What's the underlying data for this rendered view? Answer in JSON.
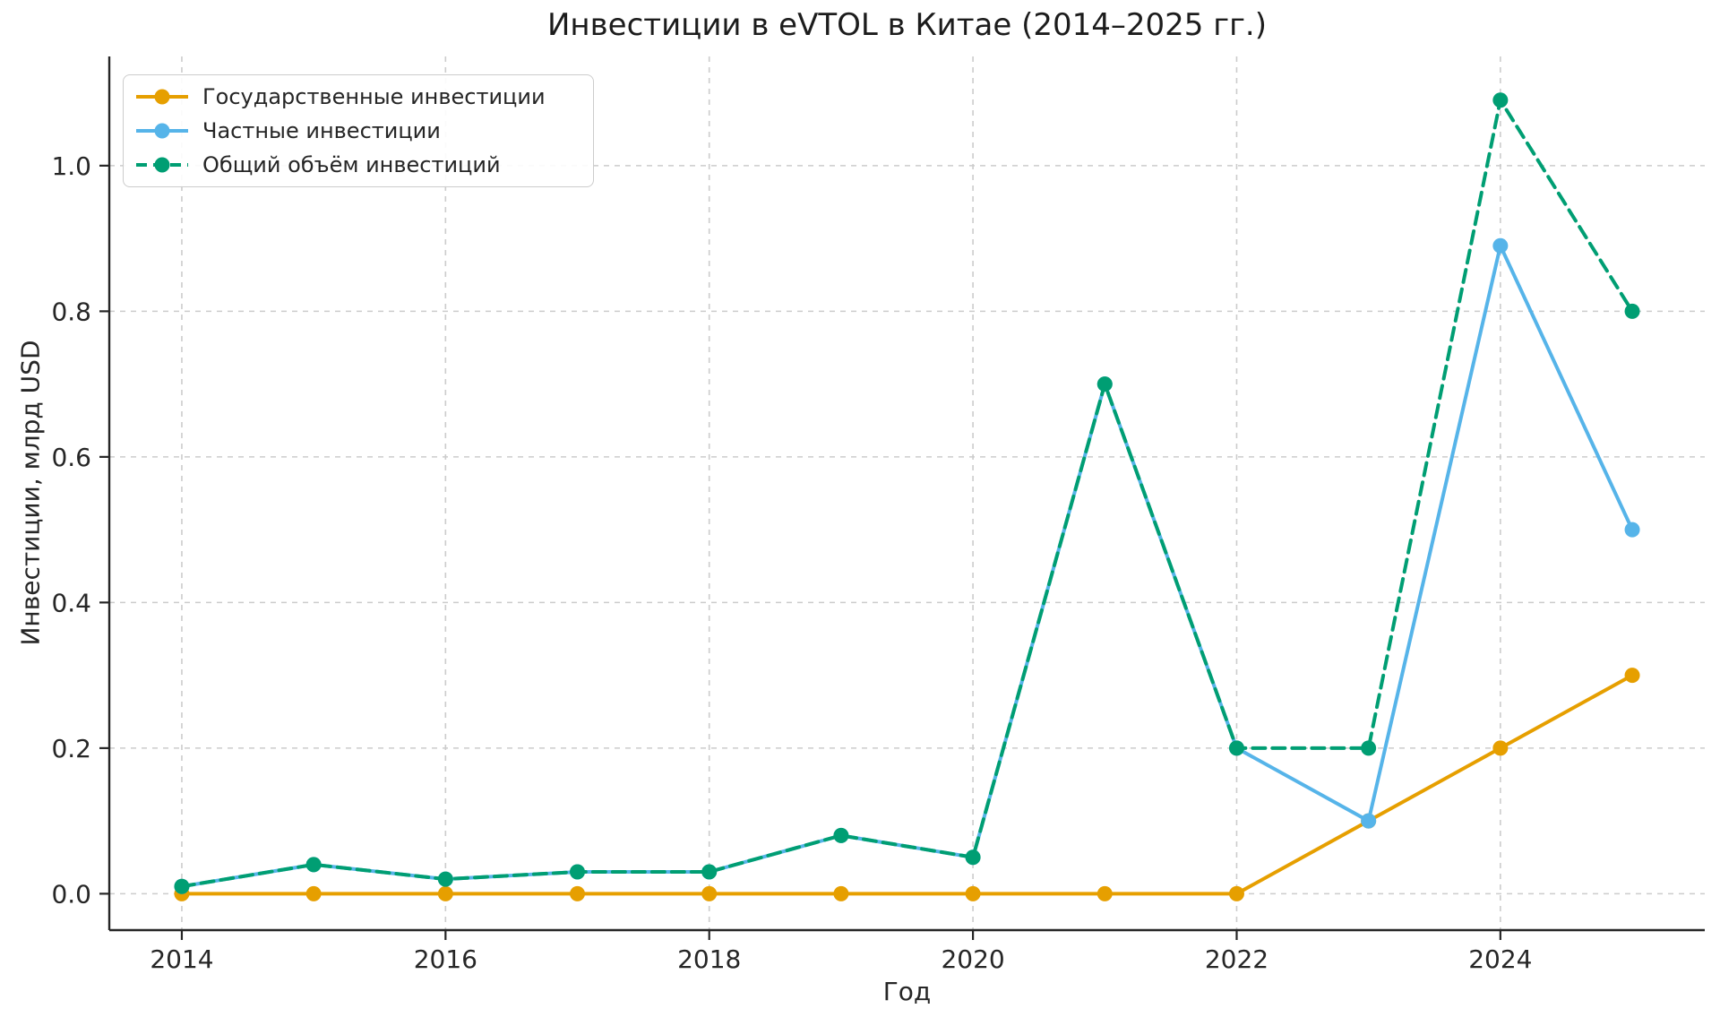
{
  "chart_data": {
    "type": "line",
    "title": "Инвестиции в eVTOL в Китае (2014–2025 гг.)",
    "xlabel": "Год",
    "ylabel": "Инвестиции, млрд USD",
    "x": [
      2014,
      2015,
      2016,
      2017,
      2018,
      2019,
      2020,
      2021,
      2022,
      2023,
      2024,
      2025
    ],
    "series": [
      {
        "id": "government",
        "name": "Государственные инвестиции",
        "color": "#E69F00",
        "style": "solid",
        "values": [
          0.0,
          0.0,
          0.0,
          0.0,
          0.0,
          0.0,
          0.0,
          0.0,
          0.0,
          0.1,
          0.2,
          0.3
        ]
      },
      {
        "id": "private",
        "name": "Частные инвестиции",
        "color": "#56B4E9",
        "style": "solid",
        "values": [
          0.01,
          0.04,
          0.02,
          0.03,
          0.03,
          0.08,
          0.05,
          0.7,
          0.2,
          0.1,
          0.89,
          0.5
        ]
      },
      {
        "id": "total",
        "name": "Общий объём инвестиций",
        "color": "#009E73",
        "style": "dashed",
        "values": [
          0.01,
          0.04,
          0.02,
          0.03,
          0.03,
          0.08,
          0.05,
          0.7,
          0.2,
          0.2,
          1.09,
          0.8
        ]
      }
    ],
    "xlim": [
      2013.45,
      2025.55
    ],
    "ylim": [
      -0.05,
      1.15
    ],
    "xticks": [
      {
        "v": 2014,
        "label": "2014"
      },
      {
        "v": 2016,
        "label": "2016"
      },
      {
        "v": 2018,
        "label": "2018"
      },
      {
        "v": 2020,
        "label": "2020"
      },
      {
        "v": 2022,
        "label": "2022"
      },
      {
        "v": 2024,
        "label": "2024"
      }
    ],
    "yticks": [
      {
        "v": 0.0,
        "label": "0.0"
      },
      {
        "v": 0.2,
        "label": "0.2"
      },
      {
        "v": 0.4,
        "label": "0.4"
      },
      {
        "v": 0.6,
        "label": "0.6"
      },
      {
        "v": 0.8,
        "label": "0.8"
      },
      {
        "v": 1.0,
        "label": "1.0"
      }
    ],
    "grid": true,
    "legend_position": "upper-left",
    "colors": {
      "grid": "#cccccc",
      "spine": "#262626",
      "tick_text": "#262626",
      "background": "#ffffff"
    }
  }
}
